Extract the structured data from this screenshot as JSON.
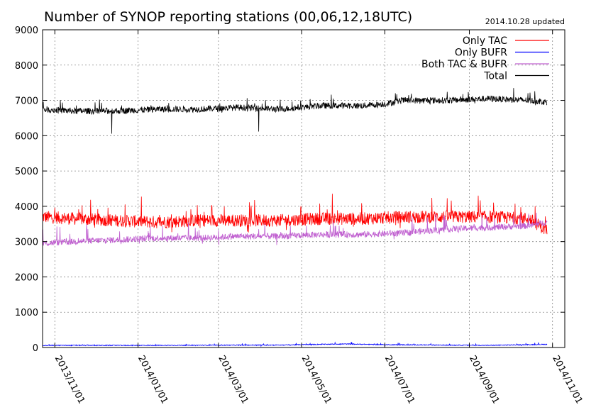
{
  "chart_data": {
    "type": "line",
    "title": "Number of SYNOP reporting stations (00,06,12,18UTC)",
    "subtitle": "2014.10.28 updated",
    "xlabel": "",
    "ylabel": "",
    "ylim": [
      0,
      9000
    ],
    "xlim": [
      "2013-10-23",
      "2014-11-10"
    ],
    "y_ticks": [
      0,
      1000,
      2000,
      3000,
      4000,
      5000,
      6000,
      7000,
      8000,
      9000
    ],
    "x_ticks": [
      "2013/11/01",
      "2014/01/01",
      "2014/03/01",
      "2014/05/01",
      "2014/07/01",
      "2014/09/01",
      "2014/11/01"
    ],
    "grid": true,
    "legend_position": "top-right",
    "x_start": "2013-10-23",
    "x_end": "2014-10-28",
    "series": [
      {
        "name": "Only TAC",
        "color": "#ff0000",
        "x": [
          "2013-10-23",
          "2013-11-15",
          "2013-12-15",
          "2014-01-15",
          "2014-02-15",
          "2014-03-15",
          "2014-04-15",
          "2014-05-15",
          "2014-06-15",
          "2014-07-15",
          "2014-08-15",
          "2014-09-15",
          "2014-10-15",
          "2014-10-28"
        ],
        "values": [
          3700,
          3650,
          3600,
          3550,
          3600,
          3600,
          3600,
          3650,
          3650,
          3700,
          3700,
          3700,
          3650,
          3300
        ]
      },
      {
        "name": "Only BUFR",
        "color": "#0000ff",
        "x": [
          "2013-10-23",
          "2014-01-15",
          "2014-04-15",
          "2014-06-01",
          "2014-07-01",
          "2014-09-15",
          "2014-10-28"
        ],
        "values": [
          60,
          60,
          70,
          100,
          80,
          60,
          90
        ]
      },
      {
        "name": "Both TAC & BUFR",
        "color": "#c060d0",
        "x": [
          "2013-10-23",
          "2013-11-15",
          "2013-12-15",
          "2014-01-15",
          "2014-02-15",
          "2014-03-15",
          "2014-04-15",
          "2014-05-15",
          "2014-06-15",
          "2014-07-15",
          "2014-08-15",
          "2014-09-15",
          "2014-10-15",
          "2014-10-28"
        ],
        "values": [
          2950,
          3000,
          3050,
          3100,
          3100,
          3150,
          3150,
          3200,
          3200,
          3250,
          3350,
          3400,
          3450,
          3550
        ]
      },
      {
        "name": "Total",
        "color": "#000000",
        "x": [
          "2013-10-23",
          "2013-11-15",
          "2013-12-15",
          "2014-01-15",
          "2014-02-15",
          "2014-03-15",
          "2014-04-15",
          "2014-05-15",
          "2014-06-15",
          "2014-07-01",
          "2014-07-15",
          "2014-08-15",
          "2014-09-15",
          "2014-10-15",
          "2014-10-28"
        ],
        "values": [
          6750,
          6700,
          6700,
          6750,
          6750,
          6800,
          6750,
          6850,
          6850,
          6900,
          7000,
          7000,
          7050,
          7000,
          6950
        ]
      }
    ]
  }
}
